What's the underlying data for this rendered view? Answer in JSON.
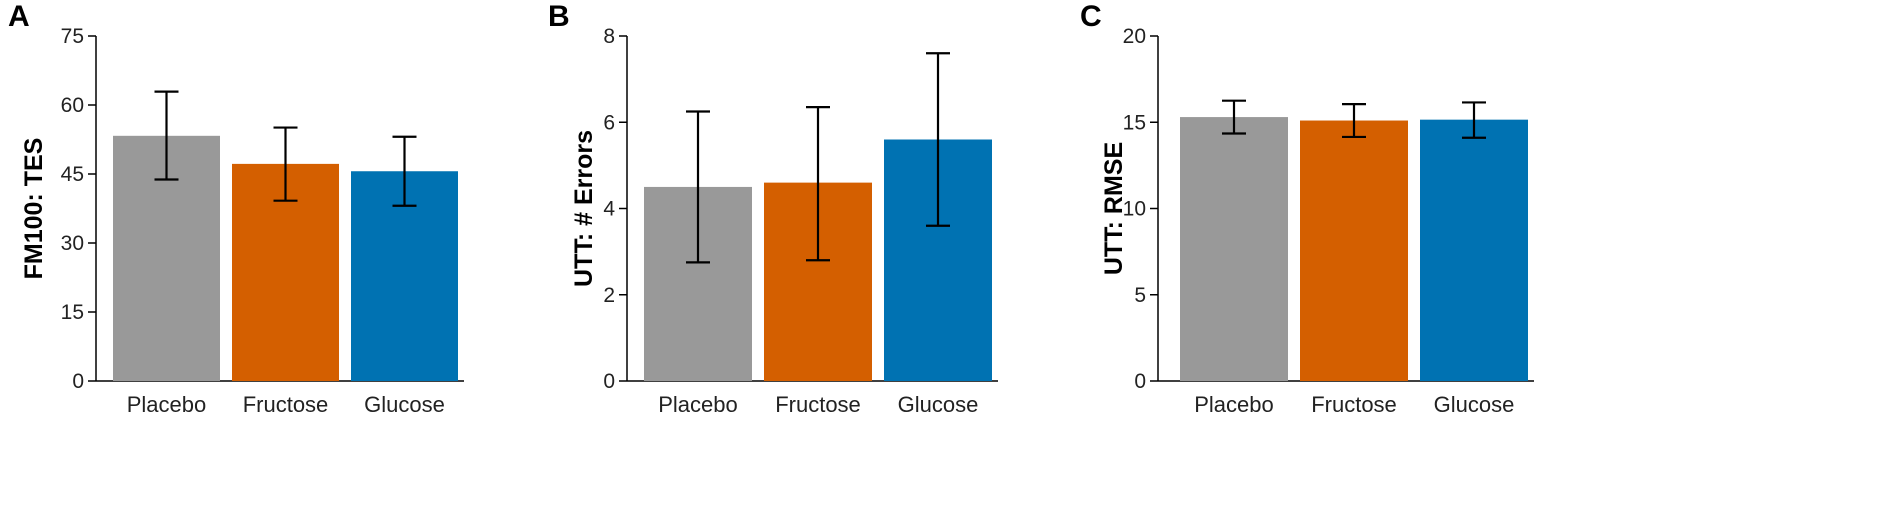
{
  "colors": {
    "Placebo": "#999999",
    "Fructose": "#d45f00",
    "Glucose": "#0072b2",
    "axis": "#000000"
  },
  "chart_data": [
    {
      "panel": "A",
      "type": "bar",
      "categories": [
        "Placebo",
        "Fructose",
        "Glucose"
      ],
      "values": [
        53.3,
        47.2,
        45.6
      ],
      "error_upper": [
        62.9,
        55.1,
        53.1
      ],
      "error_lower": [
        43.8,
        39.2,
        38.1
      ],
      "ylabel": "FM100: TES",
      "ylim": [
        0,
        75
      ],
      "yticks": [
        0,
        15,
        30,
        45,
        60,
        75
      ],
      "grid": false
    },
    {
      "panel": "B",
      "type": "bar",
      "categories": [
        "Placebo",
        "Fructose",
        "Glucose"
      ],
      "values": [
        4.5,
        4.6,
        5.6
      ],
      "error_upper": [
        6.25,
        6.35,
        7.6
      ],
      "error_lower": [
        2.75,
        2.8,
        3.6
      ],
      "ylabel": "UTT: # Errors",
      "ylim": [
        0,
        8
      ],
      "yticks": [
        0,
        2,
        4,
        6,
        8
      ],
      "grid": false
    },
    {
      "panel": "C",
      "type": "bar",
      "categories": [
        "Placebo",
        "Fructose",
        "Glucose"
      ],
      "values": [
        15.3,
        15.1,
        15.15
      ],
      "error_upper": [
        16.25,
        16.05,
        16.15
      ],
      "error_lower": [
        14.35,
        14.15,
        14.1
      ],
      "ylabel": "UTT: RMSE",
      "ylim": [
        0,
        20
      ],
      "yticks": [
        0,
        5,
        10,
        15,
        20
      ],
      "grid": false
    }
  ]
}
